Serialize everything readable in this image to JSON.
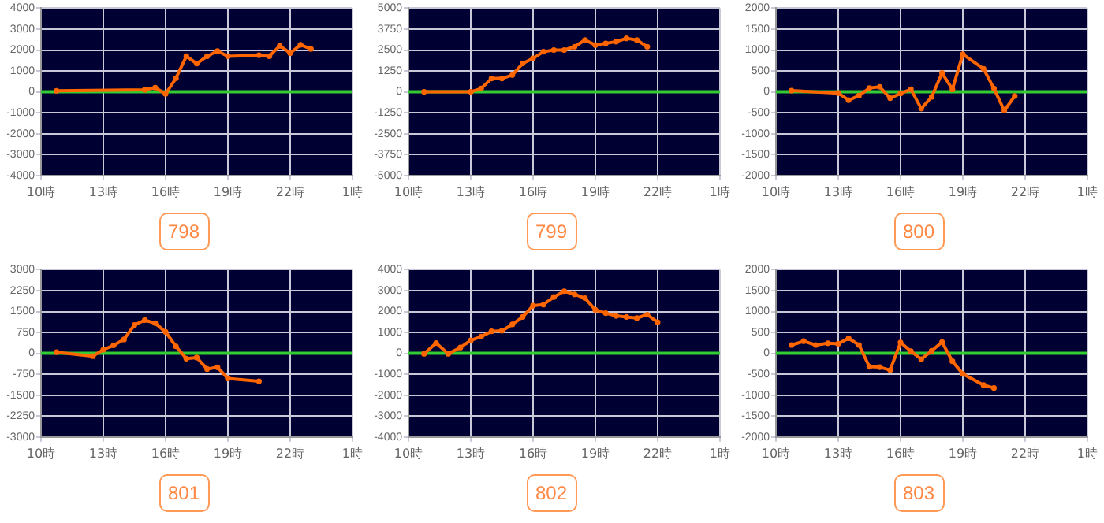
{
  "chart_data": [
    {
      "type": "line",
      "title": "798",
      "x": [
        "--01-01T10:45",
        "--01-01T15:00",
        "--01-01T15:30",
        "--01-01T16:00",
        "--01-01T16:30",
        "--01-01T17:00",
        "--01-01T17:30",
        "--01-01T18:00",
        "--01-01T18:30",
        "--01-01T19:00",
        "--01-01T20:30",
        "--01-01T21:00",
        "--01-01T21:30",
        "--01-01T22:00",
        "--01-01T22:30",
        "--01-01T23:00"
      ],
      "series": [
        {
          "color": "#ff6600",
          "values": [
            50,
            100,
            200,
            -100,
            650,
            1700,
            1350,
            1700,
            1950,
            1700,
            1750,
            1700,
            2200,
            1850,
            2250,
            2050
          ]
        }
      ],
      "xlim": [
        "--01-01T10:00",
        "--01-02T01:00"
      ],
      "xticks": [
        {
          "value": "--01-01T10:00",
          "label": "10時"
        },
        {
          "value": "--01-01T13:00",
          "label": "13時"
        },
        {
          "value": "--01-01T16:00",
          "label": "16時"
        },
        {
          "value": "--01-01T19:00",
          "label": "19時"
        },
        {
          "value": "--01-01T22:00",
          "label": "22時"
        },
        {
          "value": "--01-02T01:00",
          "label": "1時"
        }
      ],
      "ylim": [
        -4000,
        4000
      ],
      "yticks": [
        -4000,
        -3000,
        -2000,
        -1000,
        0,
        1000,
        2000,
        3000,
        4000
      ],
      "ref_lines": [
        {
          "axis": "y",
          "value": 0,
          "color": "#33cc33"
        }
      ],
      "grid": true,
      "marker": "circle",
      "line_style": "solid"
    },
    {
      "type": "line",
      "title": "799",
      "x": [
        "--01-01T10:45",
        "--01-01T13:00",
        "--01-01T13:30",
        "--01-01T14:00",
        "--01-01T14:30",
        "--01-01T15:00",
        "--01-01T15:30",
        "--01-01T16:00",
        "--01-01T16:30",
        "--01-01T17:00",
        "--01-01T17:30",
        "--01-01T18:00",
        "--01-01T18:30",
        "--01-01T19:00",
        "--01-01T19:30",
        "--01-01T20:00",
        "--01-01T20:30",
        "--01-01T21:00",
        "--01-01T21:30"
      ],
      "series": [
        {
          "color": "#ff6600",
          "values": [
            0,
            0,
            200,
            800,
            800,
            1000,
            1700,
            2000,
            2400,
            2500,
            2500,
            2700,
            3100,
            2800,
            2900,
            3000,
            3200,
            3100,
            2700
          ]
        }
      ],
      "xlim": [
        "--01-01T10:00",
        "--01-02T01:00"
      ],
      "xticks": [
        {
          "value": "--01-01T10:00",
          "label": "10時"
        },
        {
          "value": "--01-01T13:00",
          "label": "13時"
        },
        {
          "value": "--01-01T16:00",
          "label": "16時"
        },
        {
          "value": "--01-01T19:00",
          "label": "19時"
        },
        {
          "value": "--01-01T22:00",
          "label": "22時"
        },
        {
          "value": "--01-02T01:00",
          "label": "1時"
        }
      ],
      "ylim": [
        -5000,
        5000
      ],
      "yticks": [
        -5000,
        -3750,
        -2500,
        -1250,
        0,
        1250,
        2500,
        3750,
        5000
      ],
      "ref_lines": [
        {
          "axis": "y",
          "value": 0,
          "color": "#33cc33"
        }
      ],
      "grid": true,
      "marker": "circle",
      "line_style": "solid"
    },
    {
      "type": "line",
      "title": "800",
      "x": [
        "--01-01T10:45",
        "--01-01T13:00",
        "--01-01T13:30",
        "--01-01T14:00",
        "--01-01T14:30",
        "--01-01T15:00",
        "--01-01T15:30",
        "--01-01T16:00",
        "--01-01T16:30",
        "--01-01T17:00",
        "--01-01T17:30",
        "--01-01T18:00",
        "--01-01T18:30",
        "--01-01T19:00",
        "--01-01T20:00",
        "--01-01T20:30",
        "--01-01T21:00",
        "--01-01T21:30"
      ],
      "series": [
        {
          "color": "#ff6600",
          "values": [
            30,
            -30,
            -200,
            -90,
            90,
            120,
            -150,
            -40,
            60,
            -400,
            -120,
            450,
            60,
            900,
            550,
            80,
            -450,
            -100
          ]
        }
      ],
      "xlim": [
        "--01-01T10:00",
        "--01-02T01:00"
      ],
      "xticks": [
        {
          "value": "--01-01T10:00",
          "label": "10時"
        },
        {
          "value": "--01-01T13:00",
          "label": "13時"
        },
        {
          "value": "--01-01T16:00",
          "label": "16時"
        },
        {
          "value": "--01-01T19:00",
          "label": "19時"
        },
        {
          "value": "--01-01T22:00",
          "label": "22時"
        },
        {
          "value": "--01-02T01:00",
          "label": "1時"
        }
      ],
      "ylim": [
        -2000,
        2000
      ],
      "yticks": [
        -2000,
        -1500,
        -1000,
        -500,
        0,
        500,
        1000,
        1500,
        2000
      ],
      "ref_lines": [
        {
          "axis": "y",
          "value": 0,
          "color": "#33cc33"
        }
      ],
      "grid": true,
      "marker": "circle",
      "line_style": "solid"
    },
    {
      "type": "line",
      "title": "801",
      "x": [
        "--01-01T10:45",
        "--01-01T12:30",
        "--01-01T13:00",
        "--01-01T13:30",
        "--01-01T14:00",
        "--01-01T14:30",
        "--01-01T15:00",
        "--01-01T15:30",
        "--01-01T16:00",
        "--01-01T16:30",
        "--01-01T17:00",
        "--01-01T17:30",
        "--01-01T18:00",
        "--01-01T18:30",
        "--01-01T19:00",
        "--01-01T20:30"
      ],
      "series": [
        {
          "color": "#ff6600",
          "values": [
            40,
            -100,
            130,
            290,
            500,
            1020,
            1190,
            1080,
            770,
            250,
            -190,
            -150,
            -560,
            -500,
            -900,
            -1000
          ]
        }
      ],
      "xlim": [
        "--01-01T10:00",
        "--01-02T01:00"
      ],
      "xticks": [
        {
          "value": "--01-01T10:00",
          "label": "10時"
        },
        {
          "value": "--01-01T13:00",
          "label": "13時"
        },
        {
          "value": "--01-01T16:00",
          "label": "16時"
        },
        {
          "value": "--01-01T19:00",
          "label": "19時"
        },
        {
          "value": "--01-01T22:00",
          "label": "22時"
        },
        {
          "value": "--01-02T01:00",
          "label": "1時"
        }
      ],
      "ylim": [
        -3000,
        3000
      ],
      "yticks": [
        -3000,
        -2250,
        -1500,
        -750,
        0,
        750,
        1500,
        2250,
        3000
      ],
      "ref_lines": [
        {
          "axis": "y",
          "value": 0,
          "color": "#33cc33"
        }
      ],
      "grid": true,
      "marker": "circle",
      "line_style": "solid"
    },
    {
      "type": "line",
      "title": "802",
      "x": [
        "--01-01T10:45",
        "--01-01T11:20",
        "--01-01T11:55",
        "--01-01T12:30",
        "--01-01T13:00",
        "--01-01T13:30",
        "--01-01T14:00",
        "--01-01T14:30",
        "--01-01T15:00",
        "--01-01T15:30",
        "--01-01T16:00",
        "--01-01T16:30",
        "--01-01T17:00",
        "--01-01T17:30",
        "--01-01T18:00",
        "--01-01T18:30",
        "--01-01T19:00",
        "--01-01T19:30",
        "--01-01T20:00",
        "--01-01T20:30",
        "--01-01T21:00",
        "--01-01T21:30",
        "--01-01T22:00"
      ],
      "series": [
        {
          "color": "#ff6600",
          "values": [
            -20,
            490,
            -20,
            280,
            620,
            800,
            1050,
            1080,
            1380,
            1740,
            2280,
            2330,
            2690,
            2970,
            2820,
            2640,
            2080,
            1920,
            1790,
            1740,
            1690,
            1850,
            1490
          ]
        }
      ],
      "xlim": [
        "--01-01T10:00",
        "--01-02T01:00"
      ],
      "xticks": [
        {
          "value": "--01-01T10:00",
          "label": "10時"
        },
        {
          "value": "--01-01T13:00",
          "label": "13時"
        },
        {
          "value": "--01-01T16:00",
          "label": "16時"
        },
        {
          "value": "--01-01T19:00",
          "label": "19時"
        },
        {
          "value": "--01-01T22:00",
          "label": "22時"
        },
        {
          "value": "--01-02T01:00",
          "label": "1時"
        }
      ],
      "ylim": [
        -4000,
        4000
      ],
      "yticks": [
        -4000,
        -3000,
        -2000,
        -1000,
        0,
        1000,
        2000,
        3000,
        4000
      ],
      "ref_lines": [
        {
          "axis": "y",
          "value": 0,
          "color": "#33cc33"
        }
      ],
      "grid": true,
      "marker": "circle",
      "line_style": "solid"
    },
    {
      "type": "line",
      "title": "803",
      "x": [
        "--01-01T10:45",
        "--01-01T11:20",
        "--01-01T11:55",
        "--01-01T12:30",
        "--01-01T13:00",
        "--01-01T13:30",
        "--01-01T14:00",
        "--01-01T14:30",
        "--01-01T15:00",
        "--01-01T15:30",
        "--01-01T16:00",
        "--01-01T16:30",
        "--01-01T17:00",
        "--01-01T17:30",
        "--01-01T18:00",
        "--01-01T18:30",
        "--01-01T19:00",
        "--01-01T20:00",
        "--01-01T20:30"
      ],
      "series": [
        {
          "color": "#ff6600",
          "values": [
            200,
            290,
            200,
            240,
            230,
            360,
            200,
            -320,
            -330,
            -400,
            260,
            50,
            -140,
            60,
            270,
            -190,
            -490,
            -760,
            -830
          ]
        }
      ],
      "xlim": [
        "--01-01T10:00",
        "--01-02T01:00"
      ],
      "xticks": [
        {
          "value": "--01-01T10:00",
          "label": "10時"
        },
        {
          "value": "--01-01T13:00",
          "label": "13時"
        },
        {
          "value": "--01-01T16:00",
          "label": "16時"
        },
        {
          "value": "--01-01T19:00",
          "label": "19時"
        },
        {
          "value": "--01-01T22:00",
          "label": "22時"
        },
        {
          "value": "--01-02T01:00",
          "label": "1時"
        }
      ],
      "ylim": [
        -2000,
        2000
      ],
      "yticks": [
        -2000,
        -1500,
        -1000,
        -500,
        0,
        500,
        1000,
        1500,
        2000
      ],
      "ref_lines": [
        {
          "axis": "y",
          "value": 0,
          "color": "#33cc33"
        }
      ],
      "grid": true,
      "marker": "circle",
      "line_style": "solid"
    }
  ]
}
